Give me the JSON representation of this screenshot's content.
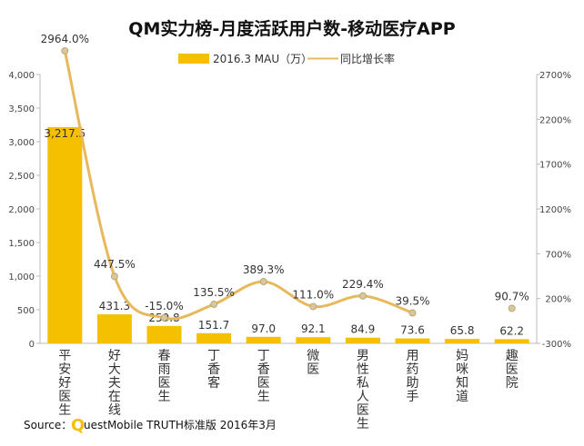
{
  "chart_data": {
    "type": "bar",
    "title": "QM实力榜-月度活跃用户数-移动医疗APP",
    "categories": [
      "平安好医生",
      "好大夫在线",
      "春雨医生",
      "丁香客",
      "丁香医生",
      "微医",
      "男性私人医生",
      "用药助手",
      "妈咪知道",
      "趣医院"
    ],
    "series": [
      {
        "name": "2016.3 MAU（万）",
        "type": "bar",
        "axis": "left",
        "color": "#f5c000",
        "values": [
          3217.5,
          431.3,
          259.8,
          151.7,
          97.0,
          92.1,
          84.9,
          73.6,
          65.8,
          62.2
        ],
        "labels": [
          "3,217.5",
          "431.3",
          "259.8",
          "151.7",
          "97.0",
          "92.1",
          "84.9",
          "73.6",
          "65.8",
          "62.2"
        ]
      },
      {
        "name": "同比增长率",
        "type": "line",
        "axis": "right",
        "color": "#e8b85c",
        "values": [
          2964.0,
          447.5,
          -15.0,
          135.5,
          389.3,
          111.0,
          229.4,
          39.5,
          null,
          90.7
        ],
        "labels": [
          "2964.0%",
          "447.5%",
          "-15.0%",
          "135.5%",
          "389.3%",
          "111.0%",
          "229.4%",
          "39.5%",
          "",
          "90.7%"
        ],
        "line_ends_at_index": 7
      }
    ],
    "y_left": {
      "min": 0,
      "max": 4000,
      "step": 500,
      "ticks": [
        "0",
        "500",
        "1,000",
        "1,500",
        "2,000",
        "2,500",
        "3,000",
        "3,500",
        "4,000"
      ]
    },
    "y_right": {
      "min": -300,
      "max": 2700,
      "step": 500,
      "ticks": [
        "-300%",
        "200%",
        "700%",
        "1200%",
        "1700%",
        "2200%",
        "2700%"
      ]
    },
    "legend_position": "top-center",
    "grid": false
  },
  "source": {
    "prefix": "Source：",
    "logo_letter": "Q",
    "text": "uestMobile TRUTH标准版 2016年3月"
  }
}
